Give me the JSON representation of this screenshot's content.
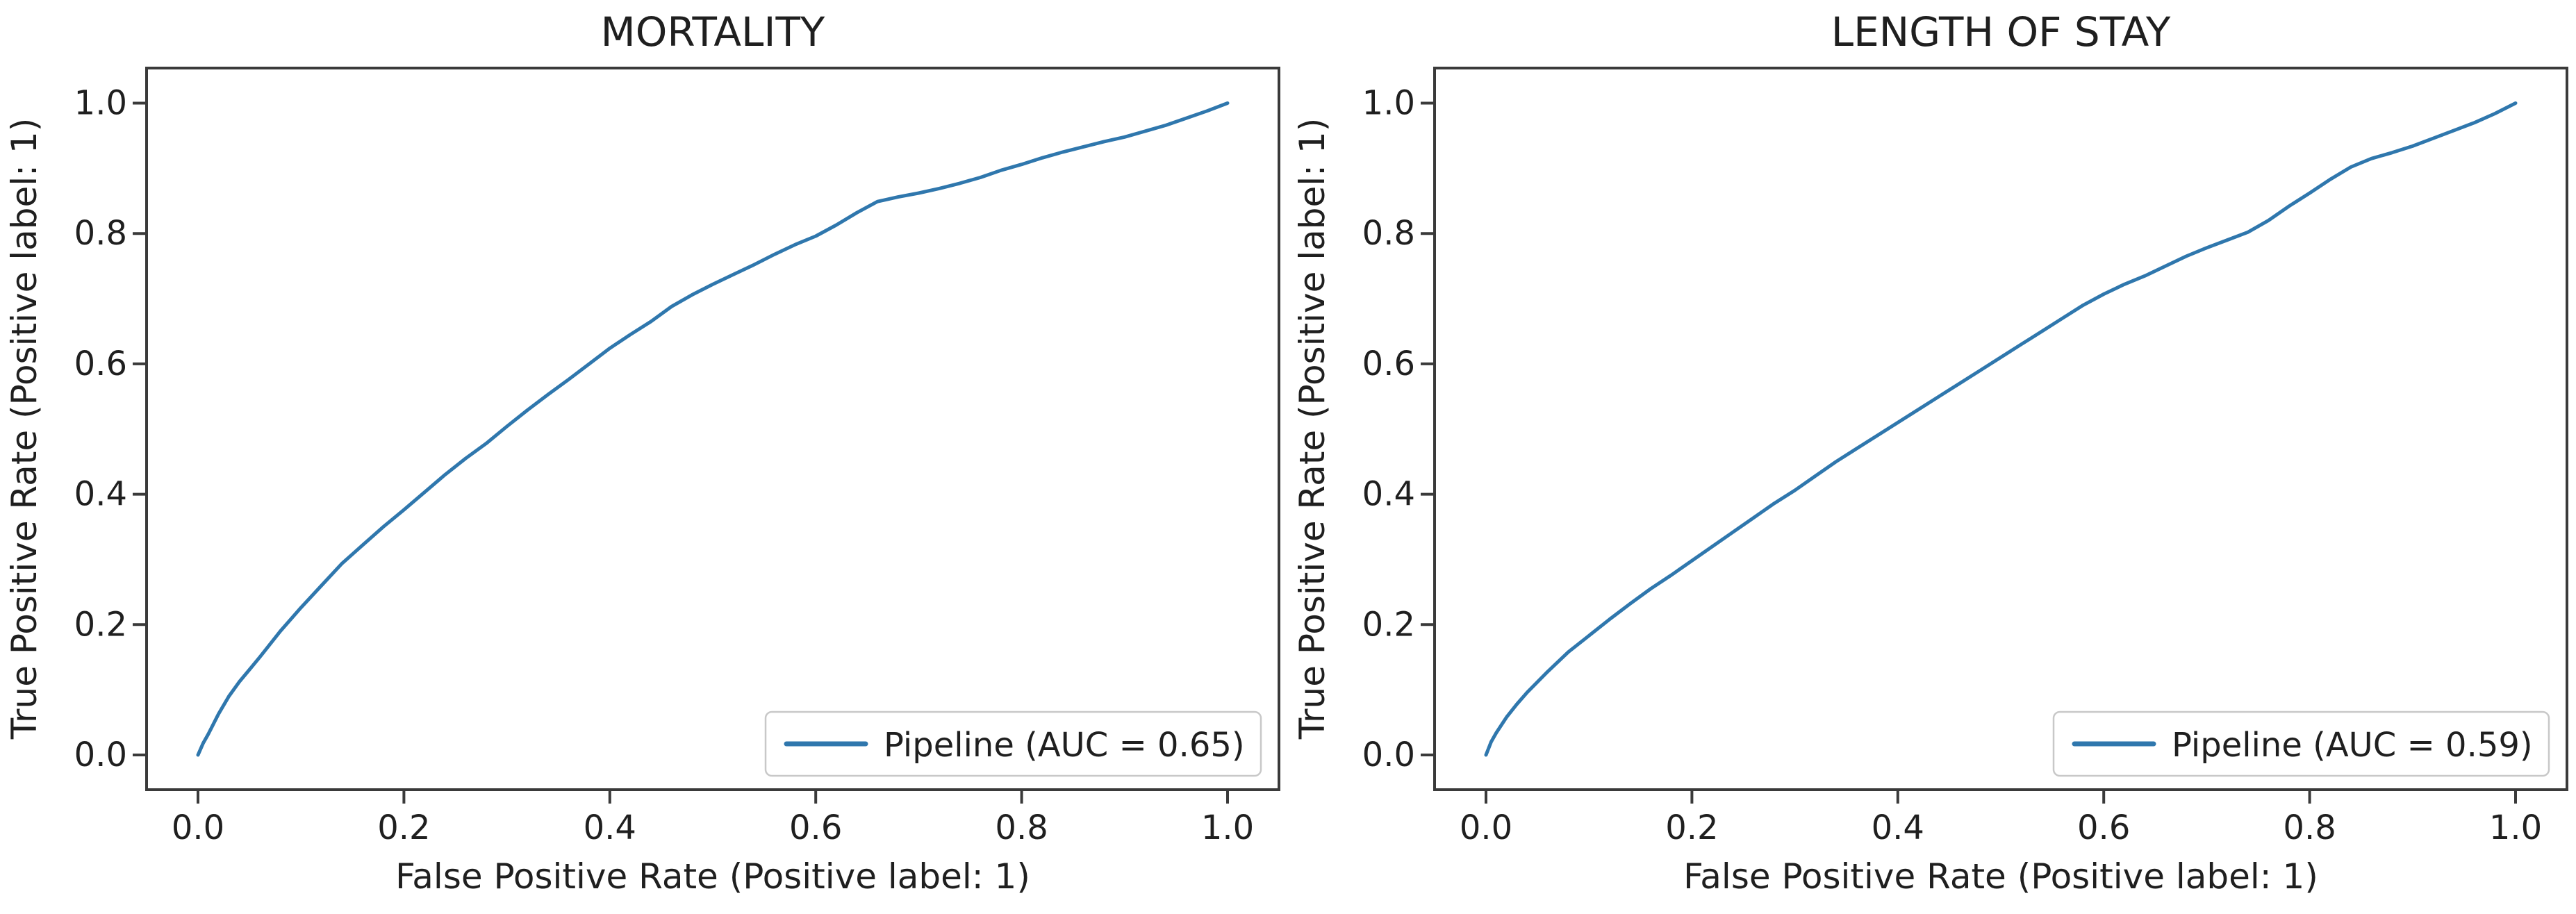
{
  "figure": {
    "background": "#ffffff",
    "text_color": "#1f1f1f",
    "spine_color": "#3a3a3a",
    "legend_border_color": "#c8c8c8",
    "accent_color": "#2f77ad"
  },
  "chart_data": [
    {
      "type": "line",
      "subtype": "roc-curve",
      "title": "MORTALITY",
      "xlabel": "False Positive Rate (Positive label: 1)",
      "ylabel": "True Positive Rate (Positive label: 1)",
      "xlim": [
        -0.05,
        1.05
      ],
      "ylim": [
        -0.05,
        1.05
      ],
      "xticks": [
        0.0,
        0.2,
        0.4,
        0.6,
        0.8,
        1.0
      ],
      "yticks": [
        0.0,
        0.2,
        0.4,
        0.6,
        0.8,
        1.0
      ],
      "grid": false,
      "legend": {
        "position": "lower right",
        "entries": [
          {
            "label": "Pipeline (AUC = 0.65)",
            "color": "#2f77ad"
          }
        ]
      },
      "series": [
        {
          "name": "Pipeline",
          "auc": 0.65,
          "color": "#2f77ad",
          "points": [
            [
              0.0,
              0.0
            ],
            [
              0.005,
              0.018
            ],
            [
              0.01,
              0.032
            ],
            [
              0.02,
              0.063
            ],
            [
              0.03,
              0.09
            ],
            [
              0.04,
              0.112
            ],
            [
              0.05,
              0.131
            ],
            [
              0.06,
              0.15
            ],
            [
              0.08,
              0.19
            ],
            [
              0.1,
              0.226
            ],
            [
              0.12,
              0.26
            ],
            [
              0.14,
              0.294
            ],
            [
              0.16,
              0.322
            ],
            [
              0.18,
              0.35
            ],
            [
              0.2,
              0.376
            ],
            [
              0.22,
              0.403
            ],
            [
              0.24,
              0.43
            ],
            [
              0.26,
              0.455
            ],
            [
              0.28,
              0.478
            ],
            [
              0.3,
              0.504
            ],
            [
              0.32,
              0.529
            ],
            [
              0.34,
              0.553
            ],
            [
              0.36,
              0.576
            ],
            [
              0.38,
              0.6
            ],
            [
              0.4,
              0.624
            ],
            [
              0.42,
              0.645
            ],
            [
              0.44,
              0.665
            ],
            [
              0.46,
              0.688
            ],
            [
              0.48,
              0.706
            ],
            [
              0.5,
              0.722
            ],
            [
              0.52,
              0.737
            ],
            [
              0.54,
              0.752
            ],
            [
              0.56,
              0.768
            ],
            [
              0.58,
              0.783
            ],
            [
              0.6,
              0.796
            ],
            [
              0.62,
              0.813
            ],
            [
              0.64,
              0.832
            ],
            [
              0.66,
              0.849
            ],
            [
              0.68,
              0.856
            ],
            [
              0.7,
              0.862
            ],
            [
              0.72,
              0.869
            ],
            [
              0.74,
              0.877
            ],
            [
              0.76,
              0.886
            ],
            [
              0.78,
              0.897
            ],
            [
              0.8,
              0.906
            ],
            [
              0.82,
              0.916
            ],
            [
              0.84,
              0.925
            ],
            [
              0.86,
              0.933
            ],
            [
              0.88,
              0.941
            ],
            [
              0.9,
              0.948
            ],
            [
              0.92,
              0.957
            ],
            [
              0.94,
              0.966
            ],
            [
              0.96,
              0.977
            ],
            [
              0.98,
              0.988
            ],
            [
              1.0,
              1.0
            ]
          ]
        }
      ]
    },
    {
      "type": "line",
      "subtype": "roc-curve",
      "title": "LENGTH OF STAY",
      "xlabel": "False Positive Rate (Positive label: 1)",
      "ylabel": "True Positive Rate (Positive label: 1)",
      "xlim": [
        -0.05,
        1.05
      ],
      "ylim": [
        -0.05,
        1.05
      ],
      "xticks": [
        0.0,
        0.2,
        0.4,
        0.6,
        0.8,
        1.0
      ],
      "yticks": [
        0.0,
        0.2,
        0.4,
        0.6,
        0.8,
        1.0
      ],
      "grid": false,
      "legend": {
        "position": "lower right",
        "entries": [
          {
            "label": "Pipeline (AUC = 0.59)",
            "color": "#2f77ad"
          }
        ]
      },
      "series": [
        {
          "name": "Pipeline",
          "auc": 0.59,
          "color": "#2f77ad",
          "points": [
            [
              0.0,
              0.0
            ],
            [
              0.005,
              0.02
            ],
            [
              0.01,
              0.034
            ],
            [
              0.02,
              0.058
            ],
            [
              0.03,
              0.078
            ],
            [
              0.04,
              0.096
            ],
            [
              0.05,
              0.112
            ],
            [
              0.06,
              0.128
            ],
            [
              0.08,
              0.158
            ],
            [
              0.1,
              0.183
            ],
            [
              0.12,
              0.208
            ],
            [
              0.14,
              0.232
            ],
            [
              0.16,
              0.255
            ],
            [
              0.18,
              0.276
            ],
            [
              0.2,
              0.298
            ],
            [
              0.22,
              0.32
            ],
            [
              0.24,
              0.342
            ],
            [
              0.26,
              0.364
            ],
            [
              0.28,
              0.386
            ],
            [
              0.3,
              0.406
            ],
            [
              0.32,
              0.428
            ],
            [
              0.34,
              0.45
            ],
            [
              0.36,
              0.47
            ],
            [
              0.38,
              0.49
            ],
            [
              0.4,
              0.51
            ],
            [
              0.42,
              0.53
            ],
            [
              0.44,
              0.55
            ],
            [
              0.46,
              0.57
            ],
            [
              0.48,
              0.59
            ],
            [
              0.5,
              0.61
            ],
            [
              0.52,
              0.63
            ],
            [
              0.54,
              0.65
            ],
            [
              0.56,
              0.67
            ],
            [
              0.58,
              0.69
            ],
            [
              0.6,
              0.707
            ],
            [
              0.62,
              0.722
            ],
            [
              0.64,
              0.735
            ],
            [
              0.66,
              0.75
            ],
            [
              0.68,
              0.765
            ],
            [
              0.7,
              0.778
            ],
            [
              0.72,
              0.79
            ],
            [
              0.74,
              0.802
            ],
            [
              0.76,
              0.82
            ],
            [
              0.78,
              0.842
            ],
            [
              0.8,
              0.862
            ],
            [
              0.82,
              0.883
            ],
            [
              0.84,
              0.902
            ],
            [
              0.86,
              0.915
            ],
            [
              0.88,
              0.924
            ],
            [
              0.9,
              0.934
            ],
            [
              0.92,
              0.946
            ],
            [
              0.94,
              0.958
            ],
            [
              0.96,
              0.97
            ],
            [
              0.98,
              0.984
            ],
            [
              1.0,
              1.0
            ]
          ]
        }
      ]
    }
  ]
}
